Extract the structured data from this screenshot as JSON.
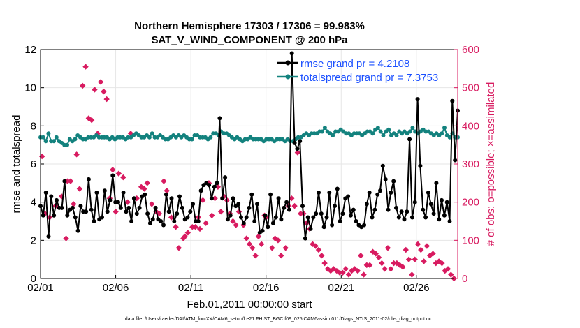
{
  "chart_data": {
    "type": "line",
    "title": "Northern Hemisphere 17303 / 17306 = 99.983%",
    "subtitle": "SAT_V_WIND_COMPONENT @ 200 hPa",
    "xlabel": "Feb.01,2011 00:00:00 start",
    "ylabel": "rmse and totalspread",
    "y2label": "# of obs: o=possible; ×=assimilated",
    "footnote": "data file: /Users/raeder/DAI/ATM_forcXX/CAM6_setup/f.e21.FHIST_BGC.f09_025.CAM6assim.011/Diags_NTrS_2011-02/obs_diag_output.nc",
    "xlim": [
      0,
      27.75
    ],
    "ylim": [
      0,
      12
    ],
    "y2lim": [
      0,
      600
    ],
    "x_tick_values": [
      0,
      5,
      10,
      15,
      20,
      25
    ],
    "x_tick_labels": [
      "02/01",
      "02/06",
      "02/11",
      "02/16",
      "02/21",
      "02/26"
    ],
    "y_ticks": [
      0,
      2,
      4,
      6,
      8,
      10,
      12
    ],
    "y2_ticks": [
      0,
      100,
      200,
      300,
      400,
      500,
      600
    ],
    "legend_position": "top-right",
    "colors": {
      "rmse": "#000000",
      "spread": "#13827e",
      "obs": "#d81b60",
      "legend_text": "#1a4fff",
      "y2axis": "#d81b60"
    },
    "series": [
      {
        "name": "rmse grand pr = 4.2108",
        "axis": "left",
        "color": "#000000",
        "marker": "circle",
        "values": [
          3.8,
          3.3,
          4.5,
          2.2,
          4.3,
          3.3,
          4.1,
          3.7,
          3.7,
          5.1,
          3.3,
          3.6,
          3.7,
          3.2,
          2.5,
          3.8,
          3.5,
          3.5,
          5.2,
          3.6,
          3.0,
          4.5,
          3.1,
          3.2,
          4.6,
          3.5,
          4.1,
          5.4,
          4.0,
          4.0,
          3.7,
          4.5,
          3.5,
          3.7,
          3.0,
          4.2,
          3.4,
          3.7,
          4.3,
          4.4,
          3.4,
          2.9,
          3.1,
          3.7,
          3.1,
          3.0,
          2.8,
          4.4,
          3.5,
          4.2,
          3.0,
          3.4,
          4.3,
          3.7,
          3.1,
          3.2,
          3.5,
          3.9,
          3.0,
          3.0,
          4.6,
          4.9,
          5.0,
          4.9,
          4.2,
          4.8,
          5.0,
          8.4,
          4.2,
          5.3,
          3.1,
          3.3,
          4.2,
          3.8,
          3.9,
          3.2,
          2.9,
          3.2,
          3.7,
          4.4,
          3.0,
          3.9,
          2.4,
          2.5,
          3.3,
          2.7,
          4.4,
          2.9,
          3.2,
          4.2,
          3.1,
          3.7,
          4.0,
          3.6,
          11.8,
          7.1,
          6.8,
          7.2,
          3.8,
          2.1,
          3.2,
          2.6,
          3.2,
          3.4,
          4.5,
          3.4,
          2.7,
          3.2,
          4.5,
          2.8,
          3.8,
          4.7,
          3.0,
          3.4,
          4.2,
          4.3,
          3.3,
          3.6,
          3.0,
          2.8,
          2.7,
          2.8,
          3.9,
          4.5,
          3.2,
          3.6,
          4.4,
          4.6,
          5.9,
          5.2,
          3.6,
          4.5,
          5.1,
          3.7,
          3.2,
          3.5,
          3.1,
          3.5,
          7.3,
          3.2,
          4.0,
          9.4,
          5.9,
          3.6,
          3.2,
          4.5,
          3.9,
          3.4,
          5.0,
          3.1,
          4.1,
          3.3,
          4.0,
          3.0,
          9.3,
          6.2,
          8.8
        ]
      },
      {
        "name": "totalspread grand pr = 7.3753",
        "axis": "left",
        "color": "#13827e",
        "marker": "circle",
        "values": [
          7.4,
          7.4,
          7.2,
          7.6,
          7.2,
          7.2,
          7.4,
          7.2,
          7.1,
          7.0,
          7.0,
          7.3,
          7.2,
          7.3,
          7.5,
          7.4,
          7.3,
          7.3,
          7.4,
          7.4,
          7.4,
          7.5,
          7.4,
          7.4,
          7.4,
          7.4,
          7.3,
          7.4,
          7.3,
          7.4,
          7.4,
          7.4,
          7.3,
          7.4,
          7.4,
          7.5,
          7.6,
          7.5,
          7.4,
          7.4,
          7.5,
          7.4,
          7.6,
          7.4,
          7.4,
          7.5,
          7.4,
          7.3,
          7.3,
          7.4,
          7.5,
          7.4,
          7.5,
          7.4,
          7.5,
          7.4,
          7.3,
          7.3,
          7.5,
          7.5,
          7.4,
          7.4,
          7.4,
          7.3,
          7.4,
          7.6,
          7.6,
          7.5,
          7.7,
          7.6,
          7.6,
          7.5,
          7.4,
          7.3,
          7.4,
          7.3,
          7.2,
          7.3,
          7.3,
          7.4,
          7.3,
          7.3,
          7.3,
          7.3,
          7.2,
          7.3,
          7.3,
          7.3,
          7.2,
          7.3,
          7.3,
          7.3,
          7.2,
          7.3,
          7.2,
          7.2,
          7.3,
          7.4,
          7.4,
          7.5,
          7.6,
          7.5,
          7.6,
          7.6,
          7.6,
          7.7,
          7.7,
          7.9,
          7.7,
          7.6,
          7.5,
          7.7,
          7.7,
          7.8,
          7.7,
          7.6,
          7.6,
          7.5,
          7.6,
          7.6,
          7.6,
          7.5,
          7.6,
          7.7,
          7.7,
          7.6,
          7.8,
          7.9,
          7.7,
          7.5,
          7.7,
          7.8,
          7.5,
          7.6,
          7.5,
          7.7,
          7.6,
          7.7,
          7.6,
          7.7,
          7.9,
          7.7,
          7.6,
          7.7,
          7.8,
          7.7,
          7.7,
          7.6,
          7.5,
          7.6,
          7.5,
          7.6,
          7.9,
          7.5,
          7.4,
          7.6,
          7.4,
          7.4
        ]
      },
      {
        "name": "# of obs assimilated",
        "axis": "right",
        "color": "#d81b60",
        "marker": "x",
        "legend": false,
        "points": [
          [
            0.1,
            320
          ],
          [
            0.3,
            170
          ],
          [
            0.6,
            160
          ],
          [
            1.0,
            190
          ],
          [
            1.4,
            215
          ],
          [
            1.7,
            105
          ],
          [
            1.8,
            255
          ],
          [
            2.0,
            255
          ],
          [
            2.2,
            195
          ],
          [
            2.4,
            325
          ],
          [
            2.6,
            235
          ],
          [
            2.8,
            505
          ],
          [
            3.0,
            555
          ],
          [
            3.2,
            420
          ],
          [
            3.4,
            415
          ],
          [
            3.6,
            495
          ],
          [
            3.8,
            380
          ],
          [
            4.0,
            515
          ],
          [
            4.2,
            490
          ],
          [
            4.4,
            470
          ],
          [
            4.6,
            210
          ],
          [
            4.8,
            285
          ],
          [
            5.0,
            175
          ],
          [
            5.2,
            275
          ],
          [
            5.5,
            265
          ],
          [
            5.8,
            200
          ],
          [
            6.0,
            380
          ],
          [
            6.4,
            210
          ],
          [
            6.7,
            240
          ],
          [
            6.9,
            235
          ],
          [
            7.1,
            250
          ],
          [
            7.4,
            195
          ],
          [
            7.7,
            175
          ],
          [
            7.9,
            170
          ],
          [
            8.2,
            255
          ],
          [
            8.4,
            230
          ],
          [
            8.7,
            160
          ],
          [
            9.0,
            135
          ],
          [
            9.2,
            80
          ],
          [
            9.5,
            105
          ],
          [
            9.6,
            110
          ],
          [
            9.8,
            120
          ],
          [
            10.1,
            135
          ],
          [
            10.3,
            135
          ],
          [
            10.5,
            160
          ],
          [
            10.6,
            130
          ],
          [
            10.8,
            205
          ],
          [
            11.0,
            145
          ],
          [
            11.2,
            250
          ],
          [
            11.4,
            165
          ],
          [
            11.6,
            210
          ],
          [
            11.8,
            240
          ],
          [
            12.0,
            175
          ],
          [
            12.2,
            215
          ],
          [
            12.4,
            205
          ],
          [
            12.6,
            170
          ],
          [
            12.8,
            150
          ],
          [
            13.0,
            140
          ],
          [
            13.2,
            175
          ],
          [
            13.5,
            140
          ],
          [
            13.7,
            105
          ],
          [
            13.9,
            90
          ],
          [
            14.1,
            80
          ],
          [
            14.3,
            60
          ],
          [
            14.5,
            110
          ],
          [
            14.7,
            90
          ],
          [
            14.9,
            165
          ],
          [
            15.0,
            160
          ],
          [
            15.4,
            80
          ],
          [
            15.6,
            105
          ],
          [
            15.8,
            100
          ],
          [
            16.0,
            60
          ],
          [
            16.3,
            80
          ],
          [
            16.5,
            190
          ],
          [
            16.7,
            210
          ],
          [
            16.9,
            190
          ],
          [
            17.1,
            330
          ],
          [
            17.3,
            170
          ],
          [
            17.5,
            170
          ],
          [
            17.7,
            145
          ],
          [
            17.9,
            130
          ],
          [
            18.1,
            90
          ],
          [
            18.3,
            85
          ],
          [
            18.5,
            75
          ],
          [
            18.7,
            60
          ],
          [
            18.9,
            40
          ],
          [
            19.1,
            25
          ],
          [
            19.3,
            20
          ],
          [
            19.5,
            25
          ],
          [
            19.7,
            20
          ],
          [
            19.9,
            15
          ],
          [
            20.1,
            15
          ],
          [
            20.3,
            25
          ],
          [
            20.5,
            10
          ],
          [
            20.7,
            20
          ],
          [
            20.9,
            25
          ],
          [
            21.1,
            20
          ],
          [
            21.3,
            60
          ],
          [
            21.5,
            10
          ],
          [
            21.7,
            35
          ],
          [
            21.9,
            35
          ],
          [
            22.1,
            70
          ],
          [
            22.3,
            65
          ],
          [
            22.5,
            55
          ],
          [
            22.7,
            40
          ],
          [
            22.9,
            25
          ],
          [
            23.1,
            80
          ],
          [
            23.3,
            25
          ],
          [
            23.5,
            40
          ],
          [
            23.7,
            40
          ],
          [
            23.9,
            35
          ],
          [
            24.1,
            30
          ],
          [
            24.3,
            75
          ],
          [
            24.5,
            50
          ],
          [
            24.7,
            10
          ],
          [
            24.9,
            50
          ],
          [
            25.1,
            90
          ],
          [
            25.3,
            75
          ],
          [
            25.5,
            45
          ],
          [
            25.7,
            85
          ],
          [
            25.9,
            60
          ],
          [
            26.1,
            65
          ],
          [
            26.3,
            40
          ],
          [
            26.5,
            45
          ],
          [
            26.7,
            40
          ],
          [
            26.9,
            20
          ],
          [
            27.1,
            25
          ],
          [
            27.3,
            10
          ],
          [
            27.5,
            0
          ]
        ]
      }
    ]
  }
}
